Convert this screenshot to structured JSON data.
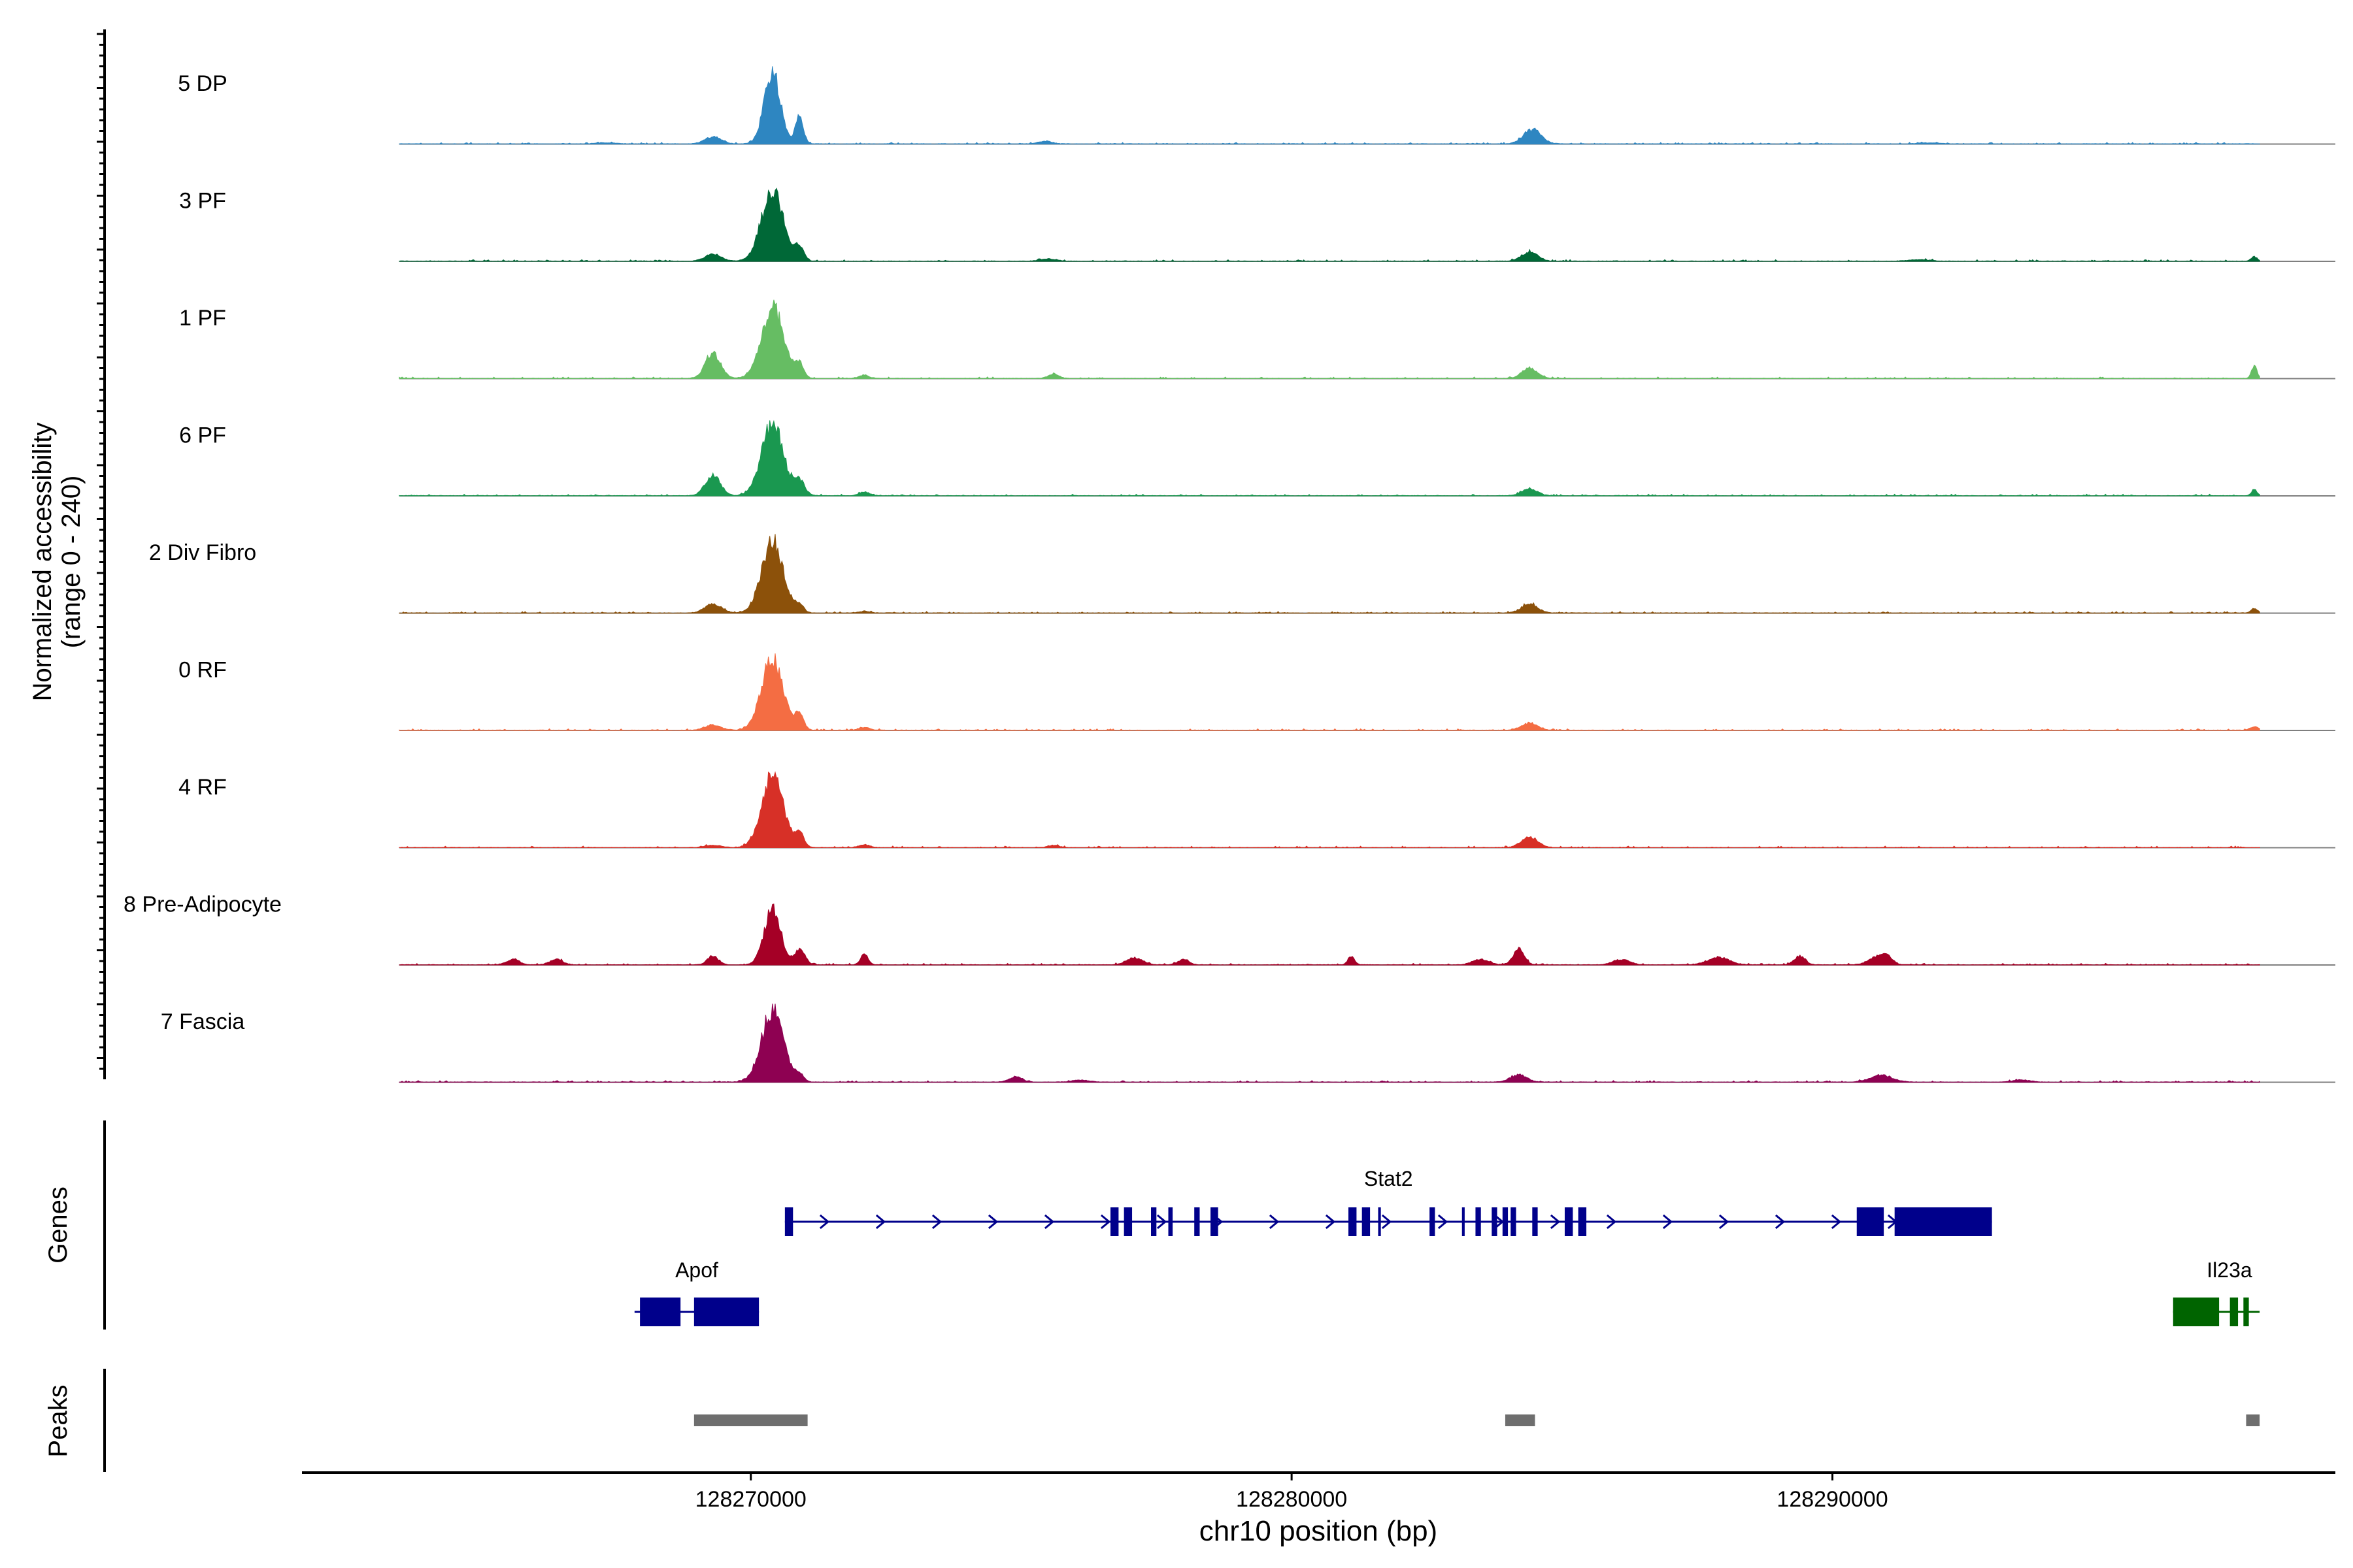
{
  "chart_data": {
    "type": "area",
    "title": "",
    "ylabel": "Normalized accessibility",
    "ylabel_range": "(range 0 - 240)",
    "xlabel": "chr10 position (bp)",
    "x_range": [
      128261700,
      128299300
    ],
    "y_range": [
      0,
      240
    ],
    "x_ticks": [
      {
        "value": 128270000,
        "label": "128270000"
      },
      {
        "value": 128280000,
        "label": "128280000"
      },
      {
        "value": 128290000,
        "label": "128290000"
      }
    ],
    "series": [
      {
        "name": "5 DP",
        "color": "#2E86C1",
        "peaks": [
          [
            128270400,
            200,
            150
          ],
          [
            128270900,
            80,
            70
          ],
          [
            128269300,
            20,
            150
          ],
          [
            128284450,
            40,
            160
          ],
          [
            128275450,
            8,
            120
          ],
          [
            128267300,
            3,
            200
          ],
          [
            128291800,
            3,
            200
          ]
        ]
      },
      {
        "name": "3 PF",
        "color": "#006837",
        "peaks": [
          [
            128270400,
            200,
            200
          ],
          [
            128270900,
            40,
            80
          ],
          [
            128269300,
            20,
            150
          ],
          [
            128284400,
            25,
            150
          ],
          [
            128275500,
            6,
            150
          ],
          [
            128291600,
            4,
            200
          ],
          [
            128297800,
            12,
            60
          ]
        ]
      },
      {
        "name": "1 PF",
        "color": "#66BD63",
        "peaks": [
          [
            128270400,
            200,
            200
          ],
          [
            128270900,
            40,
            80
          ],
          [
            128269300,
            70,
            140
          ],
          [
            128284400,
            30,
            140
          ],
          [
            128275600,
            12,
            100
          ],
          [
            128272100,
            8,
            100
          ],
          [
            128297800,
            35,
            50
          ]
        ]
      },
      {
        "name": "6 PF",
        "color": "#1A9850",
        "peaks": [
          [
            128270400,
            200,
            200
          ],
          [
            128270900,
            40,
            100
          ],
          [
            128269300,
            55,
            140
          ],
          [
            128284400,
            20,
            140
          ],
          [
            128272100,
            10,
            100
          ],
          [
            128297800,
            18,
            50
          ]
        ]
      },
      {
        "name": "2 Div Fibro",
        "color": "#8C510A",
        "peaks": [
          [
            128270400,
            200,
            200
          ],
          [
            128270900,
            20,
            80
          ],
          [
            128269300,
            25,
            150
          ],
          [
            128284400,
            25,
            150
          ],
          [
            128272100,
            5,
            100
          ],
          [
            128297800,
            12,
            60
          ]
        ]
      },
      {
        "name": "0 RF",
        "color": "#F46D43",
        "peaks": [
          [
            128270400,
            200,
            200
          ],
          [
            128270900,
            40,
            80
          ],
          [
            128269300,
            15,
            150
          ],
          [
            128284400,
            20,
            150
          ],
          [
            128272100,
            8,
            100
          ],
          [
            128297800,
            10,
            80
          ]
        ]
      },
      {
        "name": "4 RF",
        "color": "#D73027",
        "peaks": [
          [
            128270400,
            200,
            200
          ],
          [
            128270900,
            40,
            80
          ],
          [
            128284400,
            30,
            150
          ],
          [
            128272100,
            8,
            100
          ],
          [
            128275600,
            6,
            100
          ],
          [
            128269300,
            6,
            150
          ]
        ]
      },
      {
        "name": "8 Pre-Adipocyte",
        "color": "#A50026",
        "peaks": [
          [
            128270400,
            160,
            150
          ],
          [
            128270900,
            40,
            100
          ],
          [
            128269300,
            25,
            100
          ],
          [
            128272100,
            30,
            70
          ],
          [
            128284200,
            45,
            100
          ],
          [
            128281100,
            25,
            60
          ],
          [
            128265600,
            15,
            120
          ],
          [
            128266400,
            15,
            120
          ],
          [
            128277100,
            20,
            150
          ],
          [
            128287900,
            20,
            200
          ],
          [
            128289400,
            25,
            100
          ],
          [
            128290800,
            20,
            150
          ],
          [
            128291000,
            25,
            100
          ],
          [
            128278000,
            15,
            100
          ],
          [
            128283500,
            15,
            150
          ],
          [
            128286100,
            15,
            150
          ]
        ]
      },
      {
        "name": "7 Fascia",
        "color": "#8E0152",
        "peaks": [
          [
            128270400,
            200,
            200
          ],
          [
            128270900,
            20,
            80
          ],
          [
            128290900,
            20,
            200
          ],
          [
            128284200,
            20,
            150
          ],
          [
            128274900,
            15,
            120
          ],
          [
            128276100,
            6,
            150
          ],
          [
            128293500,
            6,
            150
          ]
        ]
      }
    ],
    "genes_label": "Genes",
    "genes": [
      {
        "name": "Stat2",
        "color": "#00008B",
        "strand": "+",
        "start": 128270630,
        "end": 128292950,
        "exons": [
          [
            128270630,
            128270780
          ],
          [
            128276650,
            128276800
          ],
          [
            128276900,
            128277050
          ],
          [
            128277400,
            128277500
          ],
          [
            128277720,
            128277800
          ],
          [
            128278200,
            128278300
          ],
          [
            128278500,
            128278640
          ],
          [
            128281050,
            128281200
          ],
          [
            128281300,
            128281450
          ],
          [
            128281600,
            128281650
          ],
          [
            128282550,
            128282650
          ],
          [
            128283150,
            128283200
          ],
          [
            128283400,
            128283500
          ],
          [
            128283700,
            128283800
          ],
          [
            128283900,
            128284000
          ],
          [
            128284050,
            128284150
          ],
          [
            128284450,
            128284550
          ],
          [
            128285050,
            128285200
          ],
          [
            128285300,
            128285450
          ],
          [
            128290450,
            128290950
          ],
          [
            128291150,
            128292950
          ]
        ]
      },
      {
        "name": "Apof",
        "color": "#00008B",
        "strand": "+",
        "start": 128267850,
        "end": 128270150,
        "exons": [
          [
            128267950,
            128268700
          ],
          [
            128268950,
            128270150
          ]
        ]
      },
      {
        "name": "Il23a",
        "color": "#006400",
        "strand": "-",
        "start": 128296300,
        "end": 128297900,
        "exons": [
          [
            128296300,
            128297150
          ],
          [
            128297350,
            128297500
          ],
          [
            128297600,
            128297700
          ]
        ]
      }
    ],
    "peaks_label": "Peaks",
    "peak_regions": [
      [
        128268950,
        128271050
      ],
      [
        128283950,
        128284500
      ],
      [
        128297650,
        128297900
      ]
    ]
  }
}
